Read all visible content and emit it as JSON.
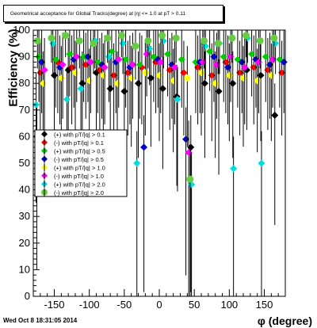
{
  "chart_data": {
    "type": "scatter",
    "title": "Geometrical acceptance for Global Tracks(degree) at |η| <= 1.0 at pT > 0.11",
    "xlabel": "φ (degree)",
    "ylabel": "Efficiency (%)",
    "xlim": [
      -180,
      180
    ],
    "ylim": [
      0,
      100
    ],
    "xticks": [
      -150,
      -100,
      -50,
      0,
      50,
      100,
      150
    ],
    "yticks": [
      0,
      10,
      20,
      30,
      40,
      50,
      60,
      70,
      80,
      90,
      100
    ],
    "grid": false,
    "legend_position": "middle-left",
    "series": [
      {
        "name": "(+) with pT/|q| > 0.1",
        "color": "#000000",
        "marker": "diamond",
        "x": [
          -175,
          -150,
          -130,
          -110,
          -90,
          -70,
          -50,
          -30,
          -12,
          5,
          25,
          45,
          65,
          85,
          105,
          125,
          145,
          165
        ],
        "y": [
          60,
          83,
          85,
          80,
          84,
          78,
          77,
          80,
          82,
          78,
          75,
          56,
          80,
          77,
          80,
          85,
          83,
          68
        ]
      },
      {
        "name": "(-) with pT/|q| > 0.1",
        "color": "#ff0000",
        "marker": "diamond",
        "x": [
          -170,
          -145,
          -125,
          -105,
          -85,
          -65,
          -45,
          -25,
          -5,
          15,
          35,
          55,
          75,
          95,
          115,
          135,
          155,
          175
        ],
        "y": [
          84,
          88,
          86,
          87,
          85,
          83,
          84,
          86,
          88,
          85,
          84,
          86,
          83,
          88,
          84,
          86,
          85,
          84
        ]
      },
      {
        "name": "(+) with pT/|q| > 0.5",
        "color": "#00cc00",
        "marker": "diamond",
        "x": [
          -172,
          -148,
          -128,
          -108,
          -88,
          -68,
          -48,
          -28,
          -8,
          12,
          32,
          52,
          72,
          92,
          112,
          132,
          152,
          172
        ],
        "y": [
          90,
          89,
          91,
          90,
          88,
          92,
          89,
          87,
          90,
          91,
          89,
          88,
          92,
          90,
          89,
          91,
          90,
          89
        ]
      },
      {
        "name": "(-) with pT/|q| > 0.5",
        "color": "#0000cc",
        "marker": "diamond",
        "x": [
          -168,
          -142,
          -122,
          -102,
          -82,
          -62,
          -42,
          -22,
          -2,
          18,
          38,
          58,
          78,
          98,
          118,
          138,
          158,
          178
        ],
        "y": [
          88,
          86,
          89,
          90,
          87,
          88,
          86,
          56,
          89,
          87,
          59,
          88,
          90,
          86,
          88,
          89,
          87,
          88
        ]
      },
      {
        "name": "(+) with pT/|q| > 1.0",
        "color": "#ffff00",
        "marker": "diamond",
        "x": [
          -166,
          -140,
          -120,
          -100,
          -80,
          -60,
          -40,
          -20,
          0,
          20,
          40,
          60,
          80,
          100,
          120,
          140,
          160
        ],
        "y": [
          80,
          82,
          84,
          81,
          83,
          80,
          82,
          84,
          83,
          81,
          82,
          84,
          80,
          83,
          82,
          81,
          83
        ]
      },
      {
        "name": "(-) with pT/|q| > 1.0",
        "color": "#ff00ff",
        "marker": "diamond",
        "x": [
          -164,
          -138,
          -118,
          -98,
          -78,
          -58,
          -38,
          -18,
          2,
          22,
          42,
          62,
          82,
          102,
          122,
          142,
          162
        ],
        "y": [
          85,
          87,
          90,
          88,
          86,
          89,
          87,
          91,
          88,
          86,
          54,
          88,
          87,
          90,
          86,
          88,
          89
        ]
      },
      {
        "name": "(+) with pT/|q| > 2.0",
        "color": "#00dddd",
        "marker": "diamond",
        "x": [
          -176,
          -152,
          -132,
          -112,
          -92,
          -72,
          -52,
          -32,
          -14,
          6,
          26,
          46,
          66,
          86,
          106,
          126,
          146,
          166
        ],
        "y": [
          72,
          95,
          74,
          78,
          96,
          90,
          95,
          50,
          93,
          96,
          74,
          42,
          94,
          95,
          48,
          97,
          50,
          95
        ]
      },
      {
        "name": "(-) with pT/|q| > 2.0",
        "color": "#66cc44",
        "marker": "circle",
        "x": [
          -174,
          -154,
          -134,
          -114,
          -94,
          -74,
          -54,
          -34,
          -16,
          4,
          24,
          44,
          64,
          84,
          104,
          124,
          144,
          164
        ],
        "y": [
          96,
          97,
          98,
          96,
          95,
          97,
          98,
          94,
          96,
          98,
          97,
          44,
          96,
          95,
          97,
          98,
          96,
          97
        ]
      }
    ]
  },
  "footer": {
    "timestamp": "Wed Oct  8 18:31:05 2014"
  }
}
